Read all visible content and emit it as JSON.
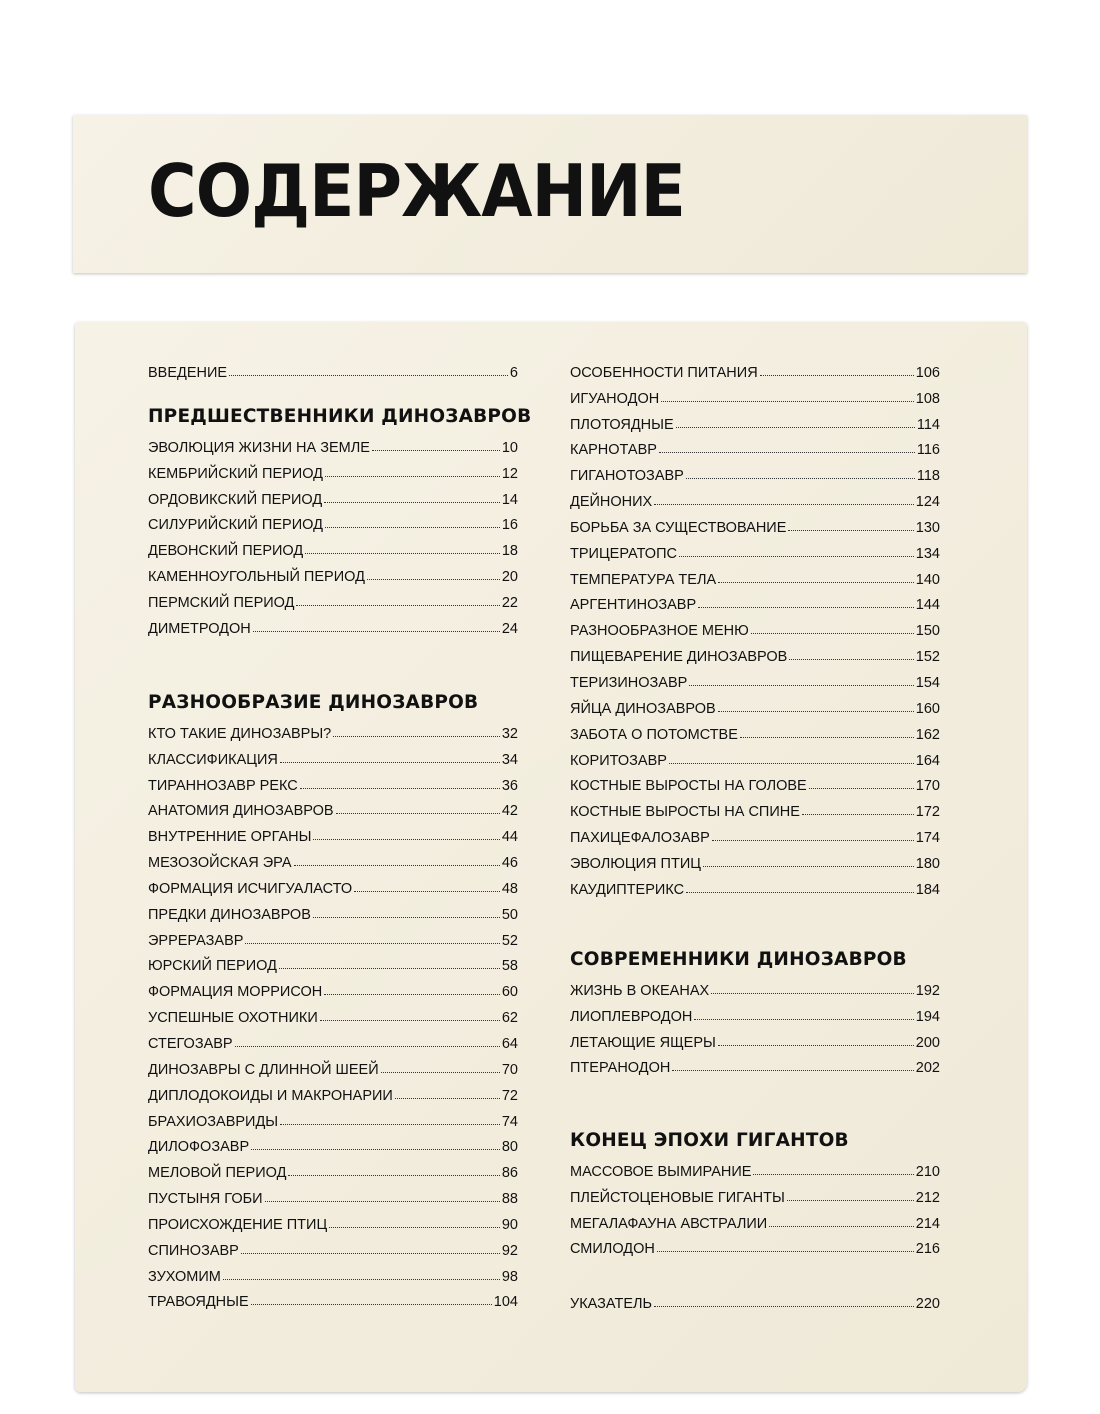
{
  "title": "СОДЕРЖАНИЕ",
  "left": {
    "intro": {
      "label": "ВВЕДЕНИЕ",
      "page": "6"
    },
    "sections": [
      {
        "heading": "ПРЕДШЕСТВЕННИКИ ДИНОЗАВРОВ",
        "items": [
          {
            "label": "ЭВОЛЮЦИЯ ЖИЗНИ НА ЗЕМЛЕ",
            "page": "10"
          },
          {
            "label": "КЕМБРИЙСКИЙ ПЕРИОД",
            "page": "12"
          },
          {
            "label": "ОРДОВИКСКИЙ ПЕРИОД",
            "page": "14"
          },
          {
            "label": "СИЛУРИЙСКИЙ ПЕРИОД",
            "page": "16"
          },
          {
            "label": "ДЕВОНСКИЙ ПЕРИОД",
            "page": "18"
          },
          {
            "label": "КАМЕННОУГОЛЬНЫЙ ПЕРИОД",
            "page": "20"
          },
          {
            "label": "ПЕРМСКИЙ ПЕРИОД",
            "page": "22"
          },
          {
            "label": "ДИМЕТРОДОН",
            "page": "24"
          }
        ]
      },
      {
        "heading": "РАЗНООБРАЗИЕ ДИНОЗАВРОВ",
        "items": [
          {
            "label": "КТО ТАКИЕ ДИНОЗАВРЫ?",
            "page": "32"
          },
          {
            "label": "КЛАССИФИКАЦИЯ",
            "page": "34"
          },
          {
            "label": "ТИРАННОЗАВР РЕКС",
            "page": "36"
          },
          {
            "label": "АНАТОМИЯ ДИНОЗАВРОВ",
            "page": "42"
          },
          {
            "label": "ВНУТРЕННИЕ ОРГАНЫ",
            "page": "44"
          },
          {
            "label": "МЕЗОЗОЙСКАЯ ЭРА",
            "page": "46"
          },
          {
            "label": "ФОРМАЦИЯ ИСЧИГУАЛАСТО",
            "page": "48"
          },
          {
            "label": "ПРЕДКИ ДИНОЗАВРОВ",
            "page": "50"
          },
          {
            "label": "ЭРРЕРАЗАВР",
            "page": "52"
          },
          {
            "label": "ЮРСКИЙ ПЕРИОД",
            "page": "58"
          },
          {
            "label": "ФОРМАЦИЯ МОРРИСОН",
            "page": "60"
          },
          {
            "label": "УСПЕШНЫЕ ОХОТНИКИ",
            "page": "62"
          },
          {
            "label": "СТЕГОЗАВР",
            "page": "64"
          },
          {
            "label": "ДИНОЗАВРЫ С ДЛИННОЙ ШЕЕЙ",
            "page": "70"
          },
          {
            "label": "ДИПЛОДОКОИДЫ И МАКРОНАРИИ",
            "page": "72"
          },
          {
            "label": "БРАХИОЗАВРИДЫ",
            "page": "74"
          },
          {
            "label": "ДИЛОФОЗАВР",
            "page": "80"
          },
          {
            "label": "МЕЛОВОЙ ПЕРИОД",
            "page": "86"
          },
          {
            "label": "ПУСТЫНЯ ГОБИ",
            "page": "88"
          },
          {
            "label": "ПРОИСХОЖДЕНИЕ ПТИЦ",
            "page": "90"
          },
          {
            "label": "СПИНОЗАВР",
            "page": "92"
          },
          {
            "label": "ЗУХОМИМ",
            "page": "98"
          },
          {
            "label": "ТРАВОЯДНЫЕ",
            "page": "104"
          }
        ]
      }
    ]
  },
  "right": {
    "continued": [
      {
        "label": "ОСОБЕННОСТИ ПИТАНИЯ",
        "page": "106"
      },
      {
        "label": "ИГУАНОДОН",
        "page": "108"
      },
      {
        "label": "ПЛОТОЯДНЫЕ",
        "page": "114"
      },
      {
        "label": "КАРНОТАВР",
        "page": "116"
      },
      {
        "label": "ГИГАНОТОЗАВР",
        "page": "118"
      },
      {
        "label": "ДЕЙНОНИХ",
        "page": "124"
      },
      {
        "label": "БОРЬБА ЗА СУЩЕСТВОВАНИЕ",
        "page": "130"
      },
      {
        "label": "ТРИЦЕРАТОПС",
        "page": "134"
      },
      {
        "label": "ТЕМПЕРАТУРА ТЕЛА",
        "page": "140"
      },
      {
        "label": "АРГЕНТИНОЗАВР",
        "page": "144"
      },
      {
        "label": "РАЗНООБРАЗНОЕ МЕНЮ",
        "page": "150"
      },
      {
        "label": "ПИЩЕВАРЕНИЕ ДИНОЗАВРОВ",
        "page": "152"
      },
      {
        "label": "ТЕРИЗИНОЗАВР",
        "page": "154"
      },
      {
        "label": "ЯЙЦА ДИНОЗАВРОВ",
        "page": "160"
      },
      {
        "label": "ЗАБОТА О ПОТОМСТВЕ",
        "page": "162"
      },
      {
        "label": "КОРИТОЗАВР",
        "page": "164"
      },
      {
        "label": "КОСТНЫЕ ВЫРОСТЫ НА ГОЛОВЕ",
        "page": "170"
      },
      {
        "label": "КОСТНЫЕ ВЫРОСТЫ НА СПИНЕ",
        "page": "172"
      },
      {
        "label": "ПАХИЦЕФАЛОЗАВР",
        "page": "174"
      },
      {
        "label": "ЭВОЛЮЦИЯ ПТИЦ",
        "page": "180"
      },
      {
        "label": "КАУДИПТЕРИКС",
        "page": "184"
      }
    ],
    "sections": [
      {
        "heading": "СОВРЕМЕННИКИ ДИНОЗАВРОВ",
        "items": [
          {
            "label": "ЖИЗНЬ В ОКЕАНАХ",
            "page": "192"
          },
          {
            "label": "ЛИОПЛЕВРОДОН",
            "page": "194"
          },
          {
            "label": "ЛЕТАЮЩИЕ ЯЩЕРЫ",
            "page": "200"
          },
          {
            "label": "ПТЕРАНОДОН",
            "page": "202"
          }
        ]
      },
      {
        "heading": "КОНЕЦ ЭПОХИ ГИГАНТОВ",
        "items": [
          {
            "label": "МАССОВОЕ ВЫМИРАНИЕ",
            "page": "210"
          },
          {
            "label": "ПЛЕЙСТОЦЕНОВЫЕ ГИГАНТЫ",
            "page": "212"
          },
          {
            "label": "МЕГАЛАФАУНА АВСТРАЛИИ",
            "page": "214"
          },
          {
            "label": "СМИЛОДОН",
            "page": "216"
          }
        ]
      }
    ],
    "index": {
      "label": "УКАЗАТЕЛЬ",
      "page": "220"
    }
  }
}
